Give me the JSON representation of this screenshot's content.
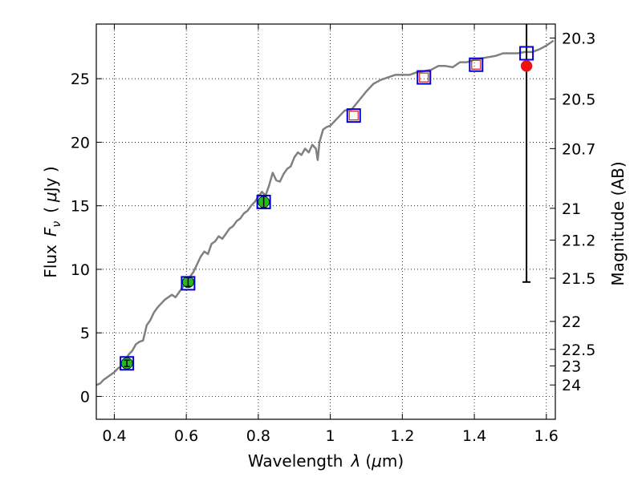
{
  "chart_data": {
    "type": "scatter",
    "xlabel": "Wavelength",
    "xlabel_symbol": "λ",
    "xlabel_unit_open": "(",
    "xlabel_unit_mu": "μ",
    "xlabel_unit_rest": "m)",
    "ylabel": "Flux",
    "ylabel_symbol": "F",
    "ylabel_subscript": "ν",
    "ylabel_unit_open": "(",
    "ylabel_unit_mu": "μ",
    "ylabel_unit_rest": "Jy )",
    "y2label": "Magnitude (AB)",
    "xlim": [
      0.35,
      1.625
    ],
    "ylim": [
      -1.8,
      29.3
    ],
    "grid": true,
    "x_ticks": [
      0.4,
      0.6,
      0.8,
      1.0,
      1.2,
      1.4,
      1.6
    ],
    "x_tick_labels": [
      "0.4",
      "0.6",
      "0.8",
      "1",
      "1.2",
      "1.4",
      "1.6"
    ],
    "y_ticks": [
      0,
      5,
      10,
      15,
      20,
      25
    ],
    "y_tick_labels": [
      "0",
      "5",
      "10",
      "15",
      "20",
      "25"
    ],
    "y2_ticks": [
      {
        "label": "20.3",
        "flux": 28.2
      },
      {
        "label": "20.5",
        "flux": 23.4
      },
      {
        "label": "20.7",
        "flux": 19.5
      },
      {
        "label": "21",
        "flux": 14.8
      },
      {
        "label": "21.2",
        "flux": 12.3
      },
      {
        "label": "21.5",
        "flux": 9.3
      },
      {
        "label": "22",
        "flux": 5.9
      },
      {
        "label": "22.5",
        "flux": 3.7
      },
      {
        "label": "23",
        "flux": 2.4
      },
      {
        "label": "24",
        "flux": 0.9
      }
    ],
    "model_spectrum": {
      "color": "#808080",
      "x": [
        0.35,
        0.36,
        0.37,
        0.38,
        0.39,
        0.4,
        0.41,
        0.42,
        0.43,
        0.44,
        0.45,
        0.46,
        0.47,
        0.48,
        0.49,
        0.5,
        0.51,
        0.52,
        0.53,
        0.54,
        0.55,
        0.56,
        0.57,
        0.58,
        0.59,
        0.6,
        0.61,
        0.62,
        0.63,
        0.64,
        0.65,
        0.66,
        0.67,
        0.68,
        0.69,
        0.7,
        0.71,
        0.72,
        0.73,
        0.74,
        0.75,
        0.76,
        0.77,
        0.78,
        0.79,
        0.8,
        0.81,
        0.82,
        0.83,
        0.84,
        0.85,
        0.86,
        0.87,
        0.88,
        0.89,
        0.9,
        0.91,
        0.92,
        0.93,
        0.94,
        0.95,
        0.96,
        0.965,
        0.97,
        0.98,
        0.99,
        1.0,
        1.02,
        1.04,
        1.06,
        1.08,
        1.1,
        1.12,
        1.14,
        1.16,
        1.18,
        1.2,
        1.22,
        1.24,
        1.26,
        1.28,
        1.3,
        1.32,
        1.34,
        1.36,
        1.38,
        1.4,
        1.42,
        1.44,
        1.46,
        1.48,
        1.5,
        1.52,
        1.54,
        1.56,
        1.58,
        1.6,
        1.62
      ],
      "y": [
        0.9,
        1.0,
        1.3,
        1.5,
        1.7,
        1.9,
        2.2,
        2.4,
        2.9,
        3.3,
        3.6,
        4.1,
        4.3,
        4.4,
        5.6,
        6.0,
        6.6,
        7.0,
        7.3,
        7.6,
        7.8,
        8.0,
        7.8,
        8.2,
        8.6,
        9.0,
        9.4,
        9.8,
        10.4,
        11.0,
        11.4,
        11.2,
        12.0,
        12.2,
        12.6,
        12.4,
        12.8,
        13.2,
        13.4,
        13.8,
        14.0,
        14.4,
        14.6,
        15.0,
        15.3,
        15.7,
        16.1,
        15.8,
        16.6,
        17.6,
        17.0,
        16.9,
        17.5,
        17.9,
        18.1,
        18.8,
        19.2,
        19.0,
        19.5,
        19.2,
        19.8,
        19.5,
        18.6,
        20.0,
        21.0,
        21.2,
        21.3,
        21.9,
        22.5,
        22.6,
        23.3,
        24.0,
        24.6,
        24.9,
        25.1,
        25.3,
        25.3,
        25.3,
        25.5,
        25.6,
        25.7,
        26.0,
        26.0,
        25.9,
        26.3,
        26.3,
        26.5,
        26.6,
        26.7,
        26.8,
        27.0,
        27.0,
        27.0,
        27.1,
        27.1,
        27.3,
        27.6,
        28.0
      ]
    },
    "model_fluxes": {
      "marker": "square",
      "color": "#0000cc",
      "x": [
        0.435,
        0.605,
        0.815,
        1.065,
        1.26,
        1.405,
        1.545
      ],
      "y": [
        2.6,
        8.9,
        15.3,
        22.1,
        25.1,
        26.1,
        27.0
      ]
    },
    "observed_fluxes": {
      "marker": "circle",
      "color": "#22bb22",
      "x": [
        0.435,
        0.605,
        0.815
      ],
      "y": [
        2.6,
        9.0,
        15.3
      ],
      "yerr": [
        0.25,
        0.35,
        0.45
      ]
    },
    "upper_limits": {
      "marker": "square",
      "color": "#cc2222",
      "x": [
        1.065,
        1.26,
        1.405
      ],
      "y": [
        22.1,
        25.1,
        26.1
      ]
    },
    "red_point": {
      "marker": "circle",
      "color": "#ee1111",
      "x": 1.545,
      "y": 26.0,
      "errbar_low": 9.0,
      "errbar_high": 29.3
    }
  }
}
